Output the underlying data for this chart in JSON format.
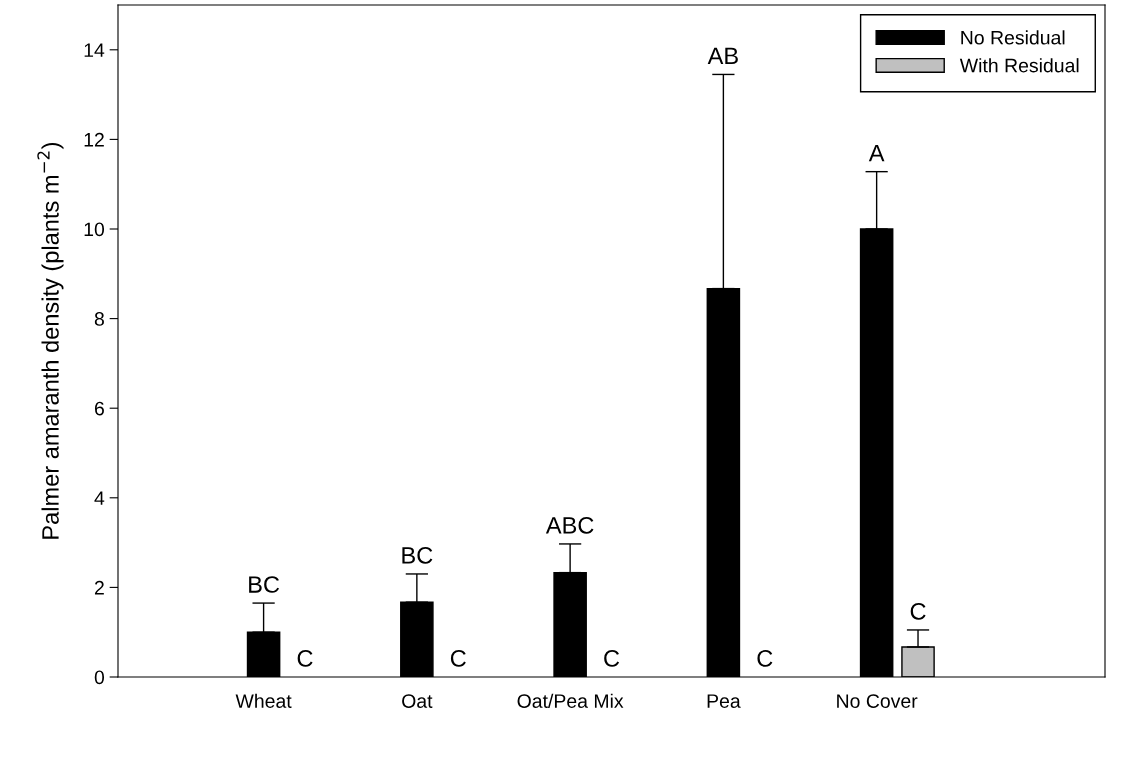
{
  "chart_data": {
    "type": "bar",
    "ylabel": "Palmer amaranth density (plants m$^{−2}$)",
    "categories": [
      "Wheat",
      "Oat",
      "Oat/Pea Mix",
      "Pea",
      "No Cover"
    ],
    "series": [
      {
        "name": "No Residual",
        "color": "#000000",
        "values": [
          1.0,
          1.67,
          2.33,
          8.67,
          10.0
        ],
        "errors": [
          [
            1.0,
            1.65
          ],
          [
            1.67,
            2.3
          ],
          [
            2.33,
            2.97
          ],
          [
            8.67,
            13.45
          ],
          [
            10.0,
            11.28
          ]
        ]
      },
      {
        "name": "With Residual",
        "color": "#c0c0c0",
        "values": [
          0,
          0,
          0,
          0,
          0.67
        ],
        "errors": [
          null,
          null,
          null,
          null,
          [
            0.67,
            1.05
          ]
        ]
      }
    ],
    "ylim": [
      0,
      15
    ],
    "yticks": [
      0,
      2,
      4,
      6,
      8,
      10,
      12,
      14
    ],
    "grid": false,
    "legend": "top right",
    "annotations": [
      "BC",
      "C",
      "BC",
      "C",
      "ABC",
      "C",
      "AB",
      "C",
      "A",
      "C"
    ]
  }
}
